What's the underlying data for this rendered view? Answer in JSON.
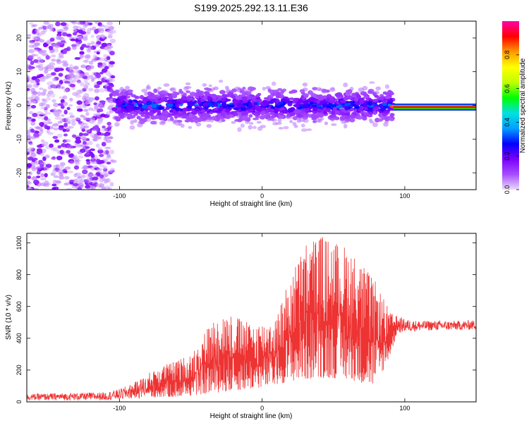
{
  "chart_data": [
    {
      "type": "heatmap",
      "title": "S199.2025.292.13.11.E36",
      "xlabel": "Height of straight line (km)",
      "ylabel": "Frequency (Hz)",
      "xlim": [
        -165,
        150
      ],
      "ylim": [
        -25,
        25
      ],
      "xticks": [
        -100,
        0,
        100
      ],
      "yticks": [
        -20,
        -10,
        0,
        10,
        20
      ],
      "colorbar": {
        "label": "Normalized spectral amplitude",
        "range": [
          0,
          1
        ],
        "ticks": [
          0.0,
          0.2,
          0.4,
          0.6,
          0.8
        ],
        "tick_labels": [
          "0.0",
          "0.2",
          "0.4",
          "0.6",
          "0.8"
        ],
        "colors": [
          "#eadcf8",
          "#a64dff",
          "#7b00ff",
          "#0000ff",
          "#00a0ff",
          "#00e0e0",
          "#00ff00",
          "#c0ff00",
          "#ffff00",
          "#ff9900",
          "#ff0000",
          "#ff00aa"
        ]
      },
      "regions": [
        {
          "x_from": -165,
          "x_to": -104,
          "description": "scattered noise",
          "freq_center": 0,
          "freq_halfwidth": 25,
          "amplitude": 0.05
        },
        {
          "x_from": -104,
          "x_to": 92,
          "description": "broadband signal near 0 Hz",
          "freq_center": 0,
          "freq_halfwidth": 5,
          "amplitude": 0.25
        },
        {
          "x_from": 90,
          "x_to": 150,
          "description": "strong narrow line at 0 Hz",
          "freq_center": -0.5,
          "freq_halfwidth": 0.8,
          "amplitude": 0.9
        }
      ]
    },
    {
      "type": "line",
      "xlabel": "Height of straight line (km)",
      "ylabel": "SNR (10 * v/v)",
      "xlim": [
        -165,
        150
      ],
      "ylim": [
        0,
        1060
      ],
      "xticks": [
        -100,
        0,
        100
      ],
      "yticks": [
        0,
        200,
        400,
        600,
        800,
        1000
      ],
      "color": "#ee3333",
      "envelope": {
        "x": [
          -165,
          -140,
          -110,
          -100,
          -90,
          -80,
          -70,
          -60,
          -50,
          -40,
          -30,
          -20,
          -10,
          0,
          10,
          20,
          30,
          40,
          50,
          60,
          70,
          80,
          90,
          95,
          100,
          110,
          120,
          130,
          140,
          150
        ],
        "low": [
          10,
          10,
          10,
          15,
          20,
          25,
          30,
          30,
          40,
          50,
          60,
          70,
          80,
          90,
          110,
          130,
          140,
          150,
          150,
          140,
          120,
          100,
          300,
          430,
          440,
          445,
          450,
          450,
          450,
          455
        ],
        "high": [
          50,
          55,
          60,
          80,
          120,
          180,
          230,
          260,
          300,
          450,
          560,
          550,
          500,
          500,
          540,
          800,
          1000,
          1060,
          1010,
          980,
          870,
          750,
          560,
          540,
          520,
          510,
          510,
          510,
          510,
          515
        ]
      }
    }
  ]
}
